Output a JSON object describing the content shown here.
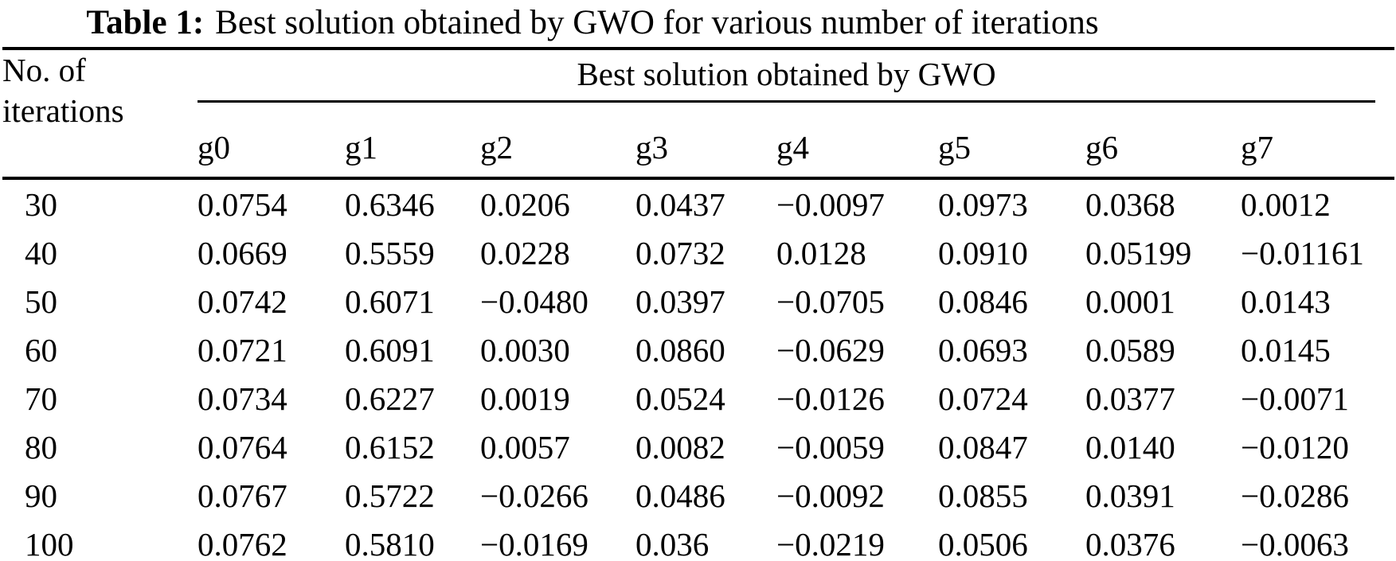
{
  "caption": {
    "label": "Table 1:",
    "text": "Best solution obtained by GWO for various number of iterations"
  },
  "table": {
    "row_header": [
      "No. of",
      "iterations"
    ],
    "group_header": "Best solution obtained by GWO",
    "columns": [
      "g0",
      "g1",
      "g2",
      "g3",
      "g4",
      "g5",
      "g6",
      "g7"
    ],
    "rows": [
      {
        "iterations": "30",
        "values": [
          "0.0754",
          "0.6346",
          "0.0206",
          "0.0437",
          "−0.0097",
          "0.0973",
          "0.0368",
          "0.0012"
        ]
      },
      {
        "iterations": "40",
        "values": [
          "0.0669",
          "0.5559",
          "0.0228",
          "0.0732",
          "0.0128",
          "0.0910",
          "0.05199",
          "−0.01161"
        ]
      },
      {
        "iterations": "50",
        "values": [
          "0.0742",
          "0.6071",
          "−0.0480",
          "0.0397",
          "−0.0705",
          "0.0846",
          "0.0001",
          "0.0143"
        ]
      },
      {
        "iterations": "60",
        "values": [
          "0.0721",
          "0.6091",
          "0.0030",
          "0.0860",
          "−0.0629",
          "0.0693",
          "0.0589",
          "0.0145"
        ]
      },
      {
        "iterations": "70",
        "values": [
          "0.0734",
          "0.6227",
          "0.0019",
          "0.0524",
          "−0.0126",
          "0.0724",
          "0.0377",
          "−0.0071"
        ]
      },
      {
        "iterations": "80",
        "values": [
          "0.0764",
          "0.6152",
          "0.0057",
          "0.0082",
          "−0.0059",
          "0.0847",
          "0.0140",
          "−0.0120"
        ]
      },
      {
        "iterations": "90",
        "values": [
          "0.0767",
          "0.5722",
          "−0.0266",
          "0.0486",
          "−0.0092",
          "0.0855",
          "0.0391",
          "−0.0286"
        ]
      },
      {
        "iterations": "100",
        "values": [
          "0.0762",
          "0.5810",
          "−0.0169",
          "0.036",
          "−0.0219",
          "0.0506",
          "0.0376",
          "−0.0063"
        ]
      }
    ]
  },
  "colors": {
    "background": "#ffffff",
    "text": "#000000",
    "rule": "#000000"
  }
}
